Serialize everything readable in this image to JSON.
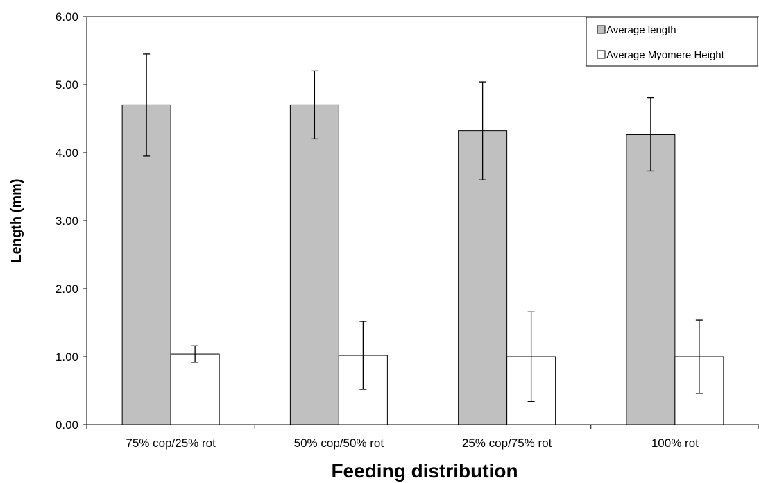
{
  "chart_data": {
    "type": "bar",
    "title": "",
    "xlabel": "Feeding distribution",
    "ylabel": "Length (mm)",
    "ylim": [
      0,
      6
    ],
    "y_ticks": [
      "0.00",
      "1.00",
      "2.00",
      "3.00",
      "4.00",
      "5.00",
      "6.00"
    ],
    "categories": [
      "75% cop/25% rot",
      "50% cop/50% rot",
      "25% cop/75% rot",
      "100% rot"
    ],
    "grid": false,
    "legend_position": "top-right",
    "series": [
      {
        "name": "Average length",
        "color": "#c0c0c0",
        "values": [
          4.7,
          4.7,
          4.32,
          4.27
        ],
        "error": [
          0.75,
          0.5,
          0.72,
          0.54
        ]
      },
      {
        "name": "Average Myomere Height",
        "color": "#ffffff",
        "values": [
          1.04,
          1.02,
          1.0,
          1.0
        ],
        "error": [
          0.12,
          0.5,
          0.66,
          0.54
        ]
      }
    ]
  }
}
